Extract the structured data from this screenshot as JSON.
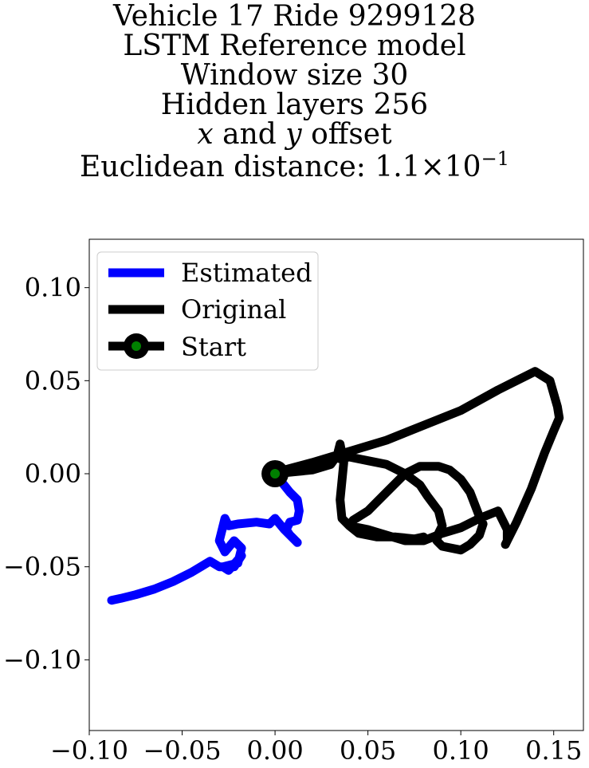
{
  "chart_data": {
    "type": "line",
    "title_lines": [
      "Vehicle 17 Ride 9299128",
      "LSTM Reference model",
      "Window size 30",
      "Hidden layers 256"
    ],
    "title_offset_line": {
      "x": "x",
      "and": " and ",
      "y": "y",
      "rest": " offset"
    },
    "title_distance": {
      "prefix": "Euclidean distance: ",
      "mantissa": "1.1",
      "times": "×",
      "base": "10",
      "exponent": "−1"
    },
    "xlim": [
      -0.1,
      0.166
    ],
    "ylim": [
      -0.138,
      0.126
    ],
    "x_ticks": [
      -0.1,
      -0.05,
      0.0,
      0.05,
      0.1,
      0.15
    ],
    "x_tick_labels": [
      "−0.10",
      "−0.05",
      "0.00",
      "0.05",
      "0.10",
      "0.15"
    ],
    "y_ticks": [
      0.1,
      0.05,
      0.0,
      -0.05,
      -0.1
    ],
    "y_tick_labels": [
      "0.10",
      "0.05",
      "0.00",
      "−0.05",
      "−0.10"
    ],
    "grid": false,
    "legend_position": "upper-left",
    "series": [
      {
        "name": "Estimated",
        "color": "#0000ff",
        "x": [
          0.0,
          0.004,
          0.008,
          0.012,
          0.013,
          0.012,
          0.008,
          0.006,
          0.008,
          0.012,
          0.009,
          0.005,
          0.0,
          -0.003,
          -0.01,
          -0.02,
          -0.025,
          -0.027,
          -0.03,
          -0.027,
          -0.022,
          -0.018,
          -0.02,
          -0.028,
          -0.025,
          -0.018,
          -0.022,
          -0.03,
          -0.035,
          -0.045,
          -0.055,
          -0.065,
          -0.075,
          -0.083,
          -0.088
        ],
        "y": [
          0.0,
          -0.005,
          -0.01,
          -0.014,
          -0.02,
          -0.025,
          -0.026,
          -0.03,
          -0.033,
          -0.037,
          -0.034,
          -0.03,
          -0.024,
          -0.027,
          -0.026,
          -0.027,
          -0.028,
          -0.024,
          -0.036,
          -0.042,
          -0.036,
          -0.04,
          -0.048,
          -0.05,
          -0.052,
          -0.044,
          -0.05,
          -0.05,
          -0.047,
          -0.053,
          -0.058,
          -0.062,
          -0.065,
          -0.067,
          -0.068
        ]
      },
      {
        "name": "Original",
        "color": "#000000",
        "x": [
          0.0,
          0.01,
          0.02,
          0.03,
          0.036,
          0.035,
          0.034,
          0.035,
          0.04,
          0.05,
          0.06,
          0.07,
          0.078,
          0.082,
          0.088,
          0.09,
          0.089,
          0.088,
          0.087,
          0.09,
          0.1,
          0.105,
          0.11,
          0.112,
          0.11,
          0.105,
          0.1,
          0.094,
          0.088,
          0.078,
          0.07,
          0.06,
          0.05,
          0.042,
          0.04,
          0.05,
          0.06,
          0.07,
          0.08,
          0.09,
          0.1,
          0.11,
          0.12,
          0.125,
          0.125,
          0.124,
          0.125,
          0.13,
          0.138,
          0.145,
          0.15,
          0.153,
          0.152,
          0.148,
          0.14,
          0.13,
          0.12,
          0.1,
          0.08,
          0.06,
          0.04,
          0.02,
          0.005,
          0.0,
          0.01,
          0.02,
          0.03,
          0.035,
          0.037,
          0.036,
          0.035,
          0.036,
          0.04,
          0.045,
          0.055,
          0.065,
          0.075,
          0.08
        ],
        "y": [
          0.0,
          0.001,
          0.002,
          0.006,
          0.011,
          0.016,
          0.012,
          0.008,
          0.009,
          0.007,
          0.005,
          0.0,
          -0.006,
          -0.012,
          -0.02,
          -0.028,
          -0.03,
          -0.032,
          -0.036,
          -0.039,
          -0.041,
          -0.038,
          -0.033,
          -0.027,
          -0.023,
          -0.01,
          -0.003,
          0.002,
          0.004,
          0.004,
          0.0,
          -0.01,
          -0.02,
          -0.025,
          -0.028,
          -0.03,
          -0.033,
          -0.036,
          -0.036,
          -0.032,
          -0.029,
          -0.024,
          -0.02,
          -0.03,
          -0.036,
          -0.038,
          -0.036,
          -0.026,
          -0.008,
          0.011,
          0.023,
          0.03,
          0.036,
          0.05,
          0.055,
          0.05,
          0.045,
          0.034,
          0.026,
          0.018,
          0.012,
          0.006,
          0.002,
          0.0,
          0.001,
          0.002,
          0.005,
          0.012,
          0.006,
          -0.004,
          -0.014,
          -0.024,
          -0.028,
          -0.032,
          -0.034,
          -0.034,
          -0.035,
          -0.034
        ]
      }
    ],
    "start": {
      "name": "Start",
      "x": 0.0,
      "y": 0.0,
      "marker_color": "#000000",
      "fill_color": "#008000"
    }
  }
}
